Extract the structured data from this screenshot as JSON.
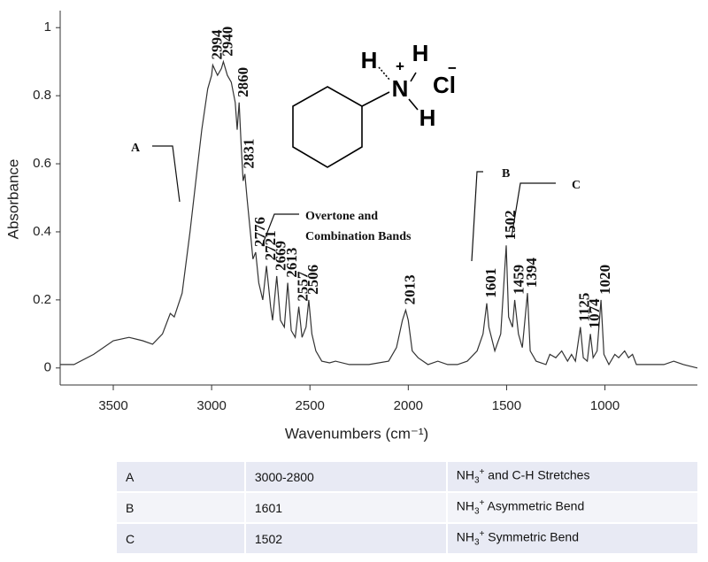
{
  "chart_data": {
    "type": "line",
    "x_label": "Wavenumbers (cm⁻¹)",
    "y_label": "Absorbance",
    "xlim": [
      3770,
      530
    ],
    "ylim": [
      -0.05,
      1.05
    ],
    "xticks": [
      3500,
      3000,
      2500,
      2000,
      1500,
      1000
    ],
    "yticks": [
      0,
      0.2,
      0.4,
      0.6,
      0.8,
      1
    ],
    "color": "#333333",
    "x_reversed": true,
    "x": [
      3770,
      3700,
      3600,
      3500,
      3420,
      3350,
      3300,
      3250,
      3210,
      3190,
      3150,
      3110,
      3080,
      3050,
      3020,
      3000,
      2994,
      2970,
      2950,
      2940,
      2920,
      2900,
      2880,
      2870,
      2860,
      2850,
      2840,
      2831,
      2820,
      2800,
      2790,
      2776,
      2760,
      2740,
      2721,
      2700,
      2690,
      2669,
      2650,
      2630,
      2613,
      2595,
      2575,
      2557,
      2540,
      2520,
      2506,
      2490,
      2470,
      2440,
      2400,
      2370,
      2300,
      2200,
      2100,
      2060,
      2030,
      2013,
      2000,
      1980,
      1950,
      1900,
      1850,
      1800,
      1750,
      1700,
      1650,
      1620,
      1601,
      1590,
      1560,
      1530,
      1502,
      1490,
      1470,
      1459,
      1440,
      1420,
      1394,
      1380,
      1350,
      1300,
      1280,
      1250,
      1220,
      1190,
      1170,
      1150,
      1125,
      1110,
      1090,
      1074,
      1060,
      1040,
      1020,
      1005,
      980,
      950,
      930,
      900,
      880,
      860,
      840,
      800,
      700,
      650,
      600,
      530
    ],
    "values": [
      0.01,
      0.01,
      0.04,
      0.08,
      0.09,
      0.08,
      0.07,
      0.1,
      0.16,
      0.15,
      0.22,
      0.4,
      0.55,
      0.7,
      0.82,
      0.86,
      0.89,
      0.86,
      0.88,
      0.9,
      0.86,
      0.84,
      0.78,
      0.7,
      0.78,
      0.66,
      0.55,
      0.57,
      0.5,
      0.38,
      0.32,
      0.34,
      0.25,
      0.2,
      0.3,
      0.18,
      0.14,
      0.27,
      0.14,
      0.12,
      0.25,
      0.11,
      0.09,
      0.18,
      0.09,
      0.12,
      0.2,
      0.1,
      0.05,
      0.02,
      0.015,
      0.02,
      0.01,
      0.01,
      0.02,
      0.06,
      0.14,
      0.17,
      0.14,
      0.05,
      0.03,
      0.01,
      0.02,
      0.01,
      0.01,
      0.02,
      0.05,
      0.1,
      0.19,
      0.12,
      0.05,
      0.1,
      0.36,
      0.15,
      0.12,
      0.2,
      0.1,
      0.06,
      0.22,
      0.05,
      0.02,
      0.01,
      0.04,
      0.03,
      0.05,
      0.02,
      0.04,
      0.02,
      0.12,
      0.03,
      0.02,
      0.1,
      0.03,
      0.05,
      0.2,
      0.04,
      0.01,
      0.04,
      0.03,
      0.05,
      0.03,
      0.04,
      0.01,
      0.01,
      0.01,
      0.02,
      0.01,
      0
    ],
    "peaks": [
      2994,
      2940,
      2860,
      2831,
      2776,
      2721,
      2669,
      2613,
      2557,
      2506,
      2013,
      1601,
      1502,
      1459,
      1394,
      1125,
      1074,
      1020
    ],
    "annotations": [
      {
        "text": "A"
      },
      {
        "text": "B"
      },
      {
        "text": "C"
      },
      {
        "lines": [
          "Overtone and",
          "Combination Bands"
        ]
      }
    ],
    "structure": {
      "atoms": [
        "H",
        "H",
        "N",
        "H",
        "Cl"
      ],
      "charges": [
        "+",
        "−"
      ]
    }
  },
  "table": {
    "rows": [
      [
        "A",
        "3000-2800",
        {
          "base": "NH",
          "sub": "3",
          "sup": "+",
          "rest": " and C-H Stretches"
        }
      ],
      [
        "B",
        "1601",
        {
          "base": "NH",
          "sub": "3",
          "sup": "+",
          "rest": " Asymmetric Bend"
        }
      ],
      [
        "C",
        "1502",
        {
          "base": "NH",
          "sub": "3",
          "sup": "+",
          "rest": " Symmetric Bend"
        }
      ]
    ]
  }
}
